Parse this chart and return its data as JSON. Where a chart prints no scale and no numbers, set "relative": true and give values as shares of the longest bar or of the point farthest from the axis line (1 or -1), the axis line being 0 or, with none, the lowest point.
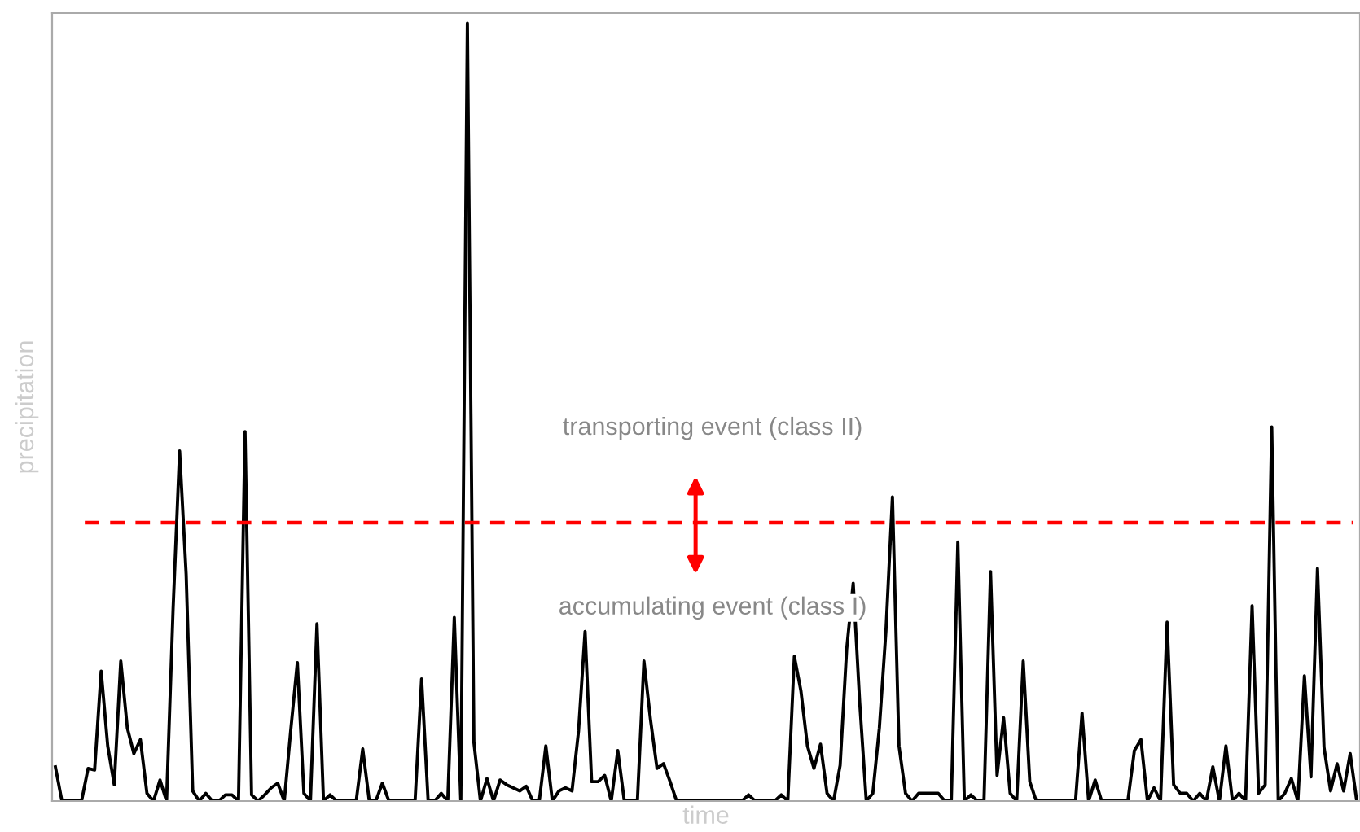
{
  "chart_data": {
    "type": "line",
    "relative": true,
    "xlabel": "time",
    "ylabel": "precipitation",
    "tick_labels": false,
    "grid": false,
    "annotations": [
      "transporting event (class II)",
      "accumulating event (class I)"
    ],
    "ref_lines": [
      {
        "axis": "y",
        "value": 0.358,
        "color": "#ff0000",
        "line_style": "dashed"
      }
    ],
    "categories": [
      null,
      null,
      null,
      null,
      null,
      null,
      null,
      null,
      null,
      null,
      null,
      null,
      null,
      null,
      null,
      null,
      null,
      null,
      null,
      null,
      null,
      null,
      null,
      null,
      null,
      null,
      null,
      null,
      null,
      null,
      null,
      null,
      null,
      null,
      null,
      null,
      null,
      null,
      null,
      null,
      null,
      null,
      null,
      null,
      null,
      null,
      null,
      null,
      null,
      null,
      null,
      null,
      null,
      null,
      null,
      null,
      null,
      null,
      null,
      null,
      null,
      null,
      null,
      null,
      null,
      null,
      null,
      null,
      null,
      null,
      null,
      null,
      null,
      null,
      null,
      null,
      null,
      null,
      null,
      null,
      null,
      null,
      null,
      null,
      null,
      null,
      null,
      null,
      null,
      null,
      null,
      null,
      null,
      null,
      null,
      null,
      null,
      null,
      null,
      null,
      null,
      null,
      null,
      null,
      null,
      null,
      null,
      null,
      null,
      null,
      null,
      null,
      null,
      null,
      null,
      null,
      null,
      null,
      null,
      null,
      null,
      null,
      null,
      null,
      null,
      null,
      null,
      null,
      null,
      null,
      null,
      null,
      null,
      null,
      null,
      null,
      null,
      null,
      null,
      null,
      null,
      null,
      null,
      null,
      null,
      null,
      null,
      null,
      null,
      null,
      null,
      null,
      null,
      null,
      null,
      null,
      null,
      null,
      null,
      null,
      null,
      null,
      null,
      null,
      null,
      null,
      null,
      null,
      null,
      null,
      null,
      null,
      null,
      null,
      null,
      null,
      null,
      null,
      null,
      null,
      null,
      null,
      null,
      null,
      null,
      null,
      null,
      null,
      null,
      null,
      null,
      null,
      null,
      null,
      null,
      null,
      null,
      null,
      null,
      null
    ],
    "series": [
      {
        "color": "#000000",
        "values": [
          0.044,
          0,
          0,
          0,
          0,
          0.042,
          0.04,
          0.167,
          0.071,
          0.021,
          0.18,
          0.094,
          0.061,
          0.079,
          0.01,
          0,
          0.027,
          0,
          0.247,
          0.45,
          0.291,
          0.013,
          0,
          0.01,
          0,
          0,
          0.008,
          0.008,
          0,
          0.475,
          0.008,
          0,
          0.008,
          0.017,
          0.023,
          0,
          0.092,
          0.178,
          0.01,
          0,
          0.228,
          0,
          0.008,
          0,
          0,
          0,
          0,
          0.067,
          0,
          0,
          0.023,
          0,
          0,
          0,
          0,
          0,
          0.157,
          0,
          0,
          0.01,
          0,
          0.236,
          0,
          1,
          0.075,
          0,
          0.029,
          0,
          0.027,
          0.021,
          0.017,
          0.013,
          0.019,
          0,
          0,
          0.071,
          0,
          0.013,
          0.017,
          0.013,
          0.09,
          0.218,
          0.025,
          0.025,
          0.033,
          0,
          0.065,
          0,
          0,
          0,
          0.18,
          0.105,
          0.042,
          0.048,
          0.025,
          0,
          0,
          0,
          0,
          0,
          0,
          0,
          0,
          0,
          0,
          0,
          0.008,
          0,
          0,
          0,
          0,
          0.008,
          0,
          0.186,
          0.142,
          0.071,
          0.042,
          0.073,
          0.01,
          0,
          0.046,
          0.195,
          0.28,
          0.126,
          0,
          0.01,
          0.094,
          0.218,
          0.391,
          0.071,
          0.01,
          0,
          0.01,
          0.01,
          0.01,
          0.01,
          0,
          0,
          0.333,
          0,
          0.008,
          0,
          0,
          0.295,
          0.033,
          0.107,
          0.01,
          0,
          0.18,
          0.025,
          0,
          0,
          0,
          0,
          0,
          0,
          0,
          0.113,
          0,
          0.027,
          0,
          0,
          0,
          0,
          0,
          0.065,
          0.079,
          0,
          0.017,
          0,
          0.23,
          0.021,
          0.01,
          0.01,
          0,
          0.01,
          0,
          0.044,
          0,
          0.071,
          0,
          0.01,
          0,
          0.251,
          0.01,
          0.021,
          0.481,
          0,
          0.01,
          0.029,
          0,
          0.161,
          0.031,
          0.299,
          0.069,
          0.013,
          0.048,
          0.013,
          0.061,
          0
        ]
      }
    ]
  }
}
